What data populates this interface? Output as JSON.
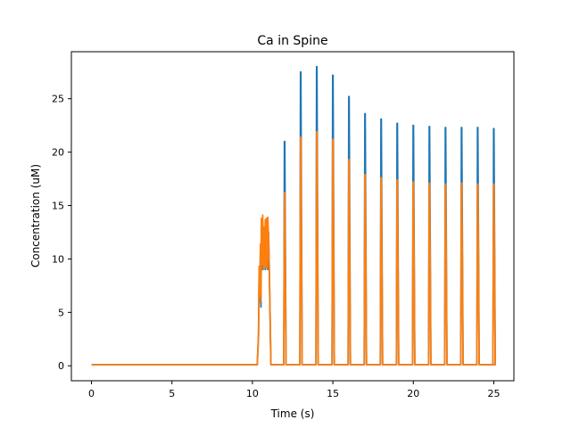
{
  "chart_data": {
    "type": "line",
    "title": "Ca in Spine",
    "xlabel": "Time (s)",
    "ylabel": "Concentration (uM)",
    "xlim": [
      -1.25,
      26.25
    ],
    "ylim": [
      -1.4,
      29.4
    ],
    "xticks": [
      0,
      5,
      10,
      15,
      20,
      25
    ],
    "yticks": [
      0,
      5,
      10,
      15,
      20,
      25
    ],
    "xtick_labels": [
      "0",
      "5",
      "10",
      "15",
      "20",
      "25"
    ],
    "ytick_labels": [
      "0",
      "5",
      "10",
      "15",
      "20",
      "25"
    ],
    "grid": false,
    "legend": "none",
    "baseline": 0.1,
    "burst": {
      "t": [
        10.38,
        10.42,
        10.46,
        10.5,
        10.53,
        10.56,
        10.6,
        10.64,
        10.68,
        10.72,
        10.76,
        10.8,
        10.84,
        10.88,
        10.92,
        10.96,
        11.0,
        11.05
      ],
      "series_1": [
        2.8,
        9.0,
        6.0,
        11.0,
        5.5,
        13.0,
        9.0,
        13.5,
        9.5,
        10.0,
        13.0,
        9.0,
        13.5,
        10.0,
        13.5,
        9.0,
        12.5,
        8.9
      ],
      "series_2": [
        3.0,
        9.3,
        6.5,
        11.4,
        6.0,
        13.8,
        9.5,
        14.1,
        9.0,
        13.0,
        9.3,
        13.7,
        9.2,
        13.8,
        9.1,
        13.9,
        12.0,
        9.1
      ]
    },
    "spikes": {
      "t": [
        12,
        13,
        14,
        15,
        16,
        17,
        18,
        19,
        20,
        21,
        22,
        23,
        24,
        25
      ],
      "series_1": [
        21.0,
        27.5,
        28.0,
        27.2,
        25.2,
        23.6,
        23.1,
        22.7,
        22.5,
        22.4,
        22.3,
        22.3,
        22.3,
        22.2
      ],
      "series_2": [
        16.2,
        21.4,
        21.9,
        21.2,
        19.3,
        17.9,
        17.6,
        17.4,
        17.2,
        17.1,
        17.0,
        17.1,
        17.0,
        17.0
      ]
    },
    "series": [
      {
        "color": "#1f77b4"
      },
      {
        "color": "#ff7f0e"
      }
    ]
  }
}
